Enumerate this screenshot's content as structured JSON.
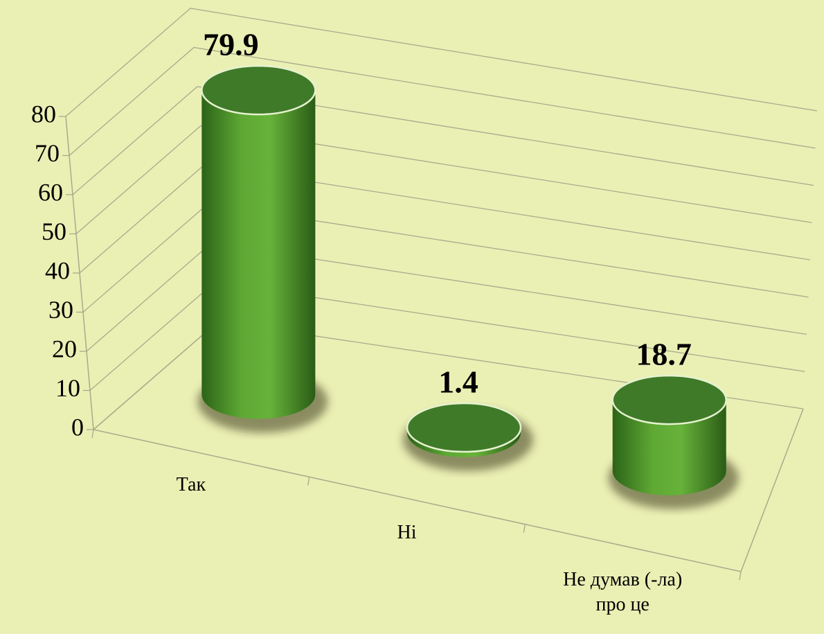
{
  "chart_data": {
    "type": "bar3d",
    "categories": [
      "Так",
      "Ні",
      "Не думав (-ла)\nпро це"
    ],
    "values": [
      79.9,
      1.4,
      18.7
    ],
    "color": "#4e9a2e",
    "ylim": [
      0,
      80
    ],
    "yticks": [
      0,
      10,
      20,
      30,
      40,
      50,
      60,
      70,
      80
    ],
    "grid": true
  }
}
